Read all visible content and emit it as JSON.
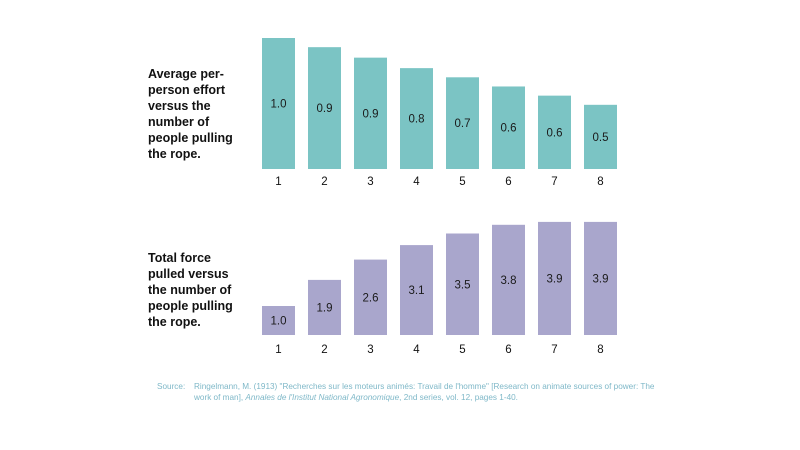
{
  "charts": {
    "top": {
      "label": "Average per-\nperson effort\nversus the\nnumber of\npeople pulling\nthe rope."
    },
    "bottom": {
      "label": "Total force\npulled versus\nthe number of\npeople pulling\nthe rope."
    }
  },
  "source": {
    "heading": "Source:",
    "text_part1": "Ringelmann, M. (1913) \"Recherches sur les moteurs animés: Travail de l'homme\" [Research on animate sources of power: The work of man], ",
    "journal": "Annales de l'Institut National Agronomique",
    "text_part2": ", 2nd series, vol. 12, pages 1-40."
  },
  "chart_data": [
    {
      "type": "bar",
      "title": "Average per-person effort versus the number of people pulling the rope.",
      "categories": [
        "1",
        "2",
        "3",
        "4",
        "5",
        "6",
        "7",
        "8"
      ],
      "values": [
        1.0,
        0.93,
        0.85,
        0.77,
        0.7,
        0.63,
        0.56,
        0.49
      ],
      "data_labels": [
        "1.0",
        "0.9",
        "0.9",
        "0.8",
        "0.7",
        "0.6",
        "0.6",
        "0.5"
      ],
      "ylim": [
        0,
        1.0
      ],
      "color": "#7bc4c4",
      "grid": false
    },
    {
      "type": "bar",
      "title": "Total force pulled versus the number of people pulling the rope.",
      "categories": [
        "1",
        "2",
        "3",
        "4",
        "5",
        "6",
        "7",
        "8"
      ],
      "values": [
        1.0,
        1.9,
        2.6,
        3.1,
        3.5,
        3.8,
        3.9,
        3.9
      ],
      "data_labels": [
        "1.0",
        "1.9",
        "2.6",
        "3.1",
        "3.5",
        "3.8",
        "3.9",
        "3.9"
      ],
      "ylim": [
        0,
        4.0
      ],
      "color": "#a9a6cc",
      "grid": false
    }
  ]
}
